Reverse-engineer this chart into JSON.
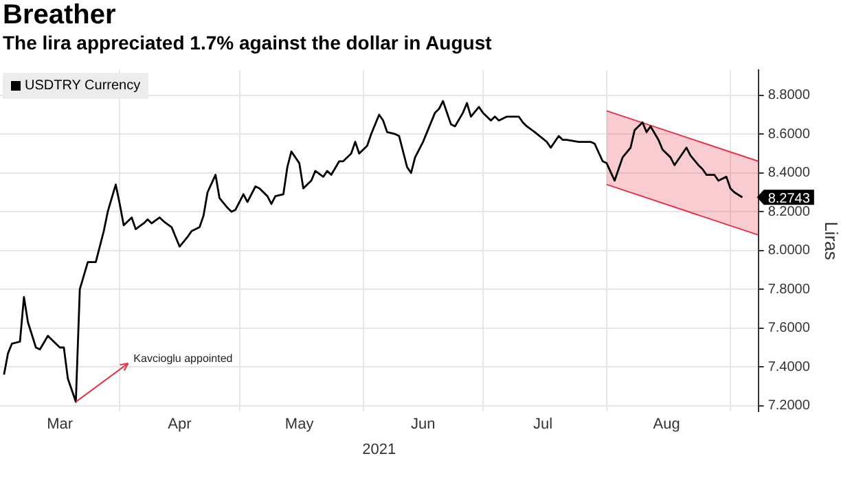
{
  "chart_data": {
    "type": "line",
    "title": "Breather",
    "subtitle": "The lira appreciated 1.7% against the dollar in August",
    "xlabel": "2021",
    "ylabel": "Liras",
    "xlim": [
      "2021-03-02",
      "2021-09-08"
    ],
    "xticks": [
      {
        "value": "2021-03-17",
        "label": "Mar"
      },
      {
        "value": "2021-04-01",
        "label": null
      },
      {
        "value": "2021-04-16",
        "label": "Apr"
      },
      {
        "value": "2021-05-01",
        "label": null
      },
      {
        "value": "2021-05-16",
        "label": "May"
      },
      {
        "value": "2021-06-01",
        "label": null
      },
      {
        "value": "2021-06-16",
        "label": "Jun"
      },
      {
        "value": "2021-07-01",
        "label": null
      },
      {
        "value": "2021-07-16",
        "label": "Jul"
      },
      {
        "value": "2021-08-01",
        "label": null
      },
      {
        "value": "2021-08-16",
        "label": "Aug"
      },
      {
        "value": "2021-09-01",
        "label": null
      }
    ],
    "ylim": [
      7.17,
      8.93
    ],
    "yticks": [
      {
        "value": 7.2,
        "label": "7.2000"
      },
      {
        "value": 7.4,
        "label": "7.4000"
      },
      {
        "value": 7.6,
        "label": "7.6000"
      },
      {
        "value": 7.8,
        "label": "7.8000"
      },
      {
        "value": 8,
        "label": "8.0000"
      },
      {
        "value": 8.2,
        "label": "8.2000"
      },
      {
        "value": 8.4,
        "label": "8.4000"
      },
      {
        "value": 8.6,
        "label": "8.6000"
      },
      {
        "value": 8.8,
        "label": "8.8000"
      }
    ],
    "grid": true,
    "legend": "top left",
    "marker": "none",
    "line_style": "solid",
    "x": [
      "2021-03-03",
      "2021-03-04",
      "2021-03-05",
      "2021-03-07",
      "2021-03-08",
      "2021-03-09",
      "2021-03-11",
      "2021-03-12",
      "2021-03-14",
      "2021-03-15",
      "2021-03-17",
      "2021-03-18",
      "2021-03-19",
      "2021-03-21",
      "2021-03-22",
      "2021-03-24",
      "2021-03-25",
      "2021-03-26",
      "2021-03-28",
      "2021-03-29",
      "2021-03-31",
      "2021-04-01",
      "2021-04-02",
      "2021-04-04",
      "2021-04-05",
      "2021-04-07",
      "2021-04-08",
      "2021-04-09",
      "2021-04-11",
      "2021-04-12",
      "2021-04-14",
      "2021-04-15",
      "2021-04-16",
      "2021-04-18",
      "2021-04-19",
      "2021-04-21",
      "2021-04-22",
      "2021-04-23",
      "2021-04-25",
      "2021-04-26",
      "2021-04-28",
      "2021-04-29",
      "2021-04-30",
      "2021-05-02",
      "2021-05-03",
      "2021-05-05",
      "2021-05-06",
      "2021-05-08",
      "2021-05-09",
      "2021-05-10",
      "2021-05-12",
      "2021-05-13",
      "2021-05-14",
      "2021-05-16",
      "2021-05-17",
      "2021-05-19",
      "2021-05-20",
      "2021-05-22",
      "2021-05-23",
      "2021-05-24",
      "2021-05-26",
      "2021-05-27",
      "2021-05-29",
      "2021-05-30",
      "2021-05-31",
      "2021-06-02",
      "2021-06-03",
      "2021-06-05",
      "2021-06-06",
      "2021-06-07",
      "2021-06-09",
      "2021-06-10",
      "2021-06-12",
      "2021-06-13",
      "2021-06-14",
      "2021-06-16",
      "2021-06-17",
      "2021-06-19",
      "2021-06-20",
      "2021-06-21",
      "2021-06-23",
      "2021-06-24",
      "2021-06-26",
      "2021-06-27",
      "2021-06-28",
      "2021-06-30",
      "2021-07-01",
      "2021-07-03",
      "2021-07-04",
      "2021-07-05",
      "2021-07-07",
      "2021-07-10",
      "2021-07-11",
      "2021-07-12",
      "2021-07-14",
      "2021-07-17",
      "2021-07-18",
      "2021-07-20",
      "2021-07-21",
      "2021-07-22",
      "2021-07-25",
      "2021-07-28",
      "2021-07-29",
      "2021-07-31",
      "2021-08-01",
      "2021-08-03",
      "2021-08-04",
      "2021-08-05",
      "2021-08-07",
      "2021-08-08",
      "2021-08-10",
      "2021-08-11",
      "2021-08-12",
      "2021-08-14",
      "2021-08-15",
      "2021-08-17",
      "2021-08-18",
      "2021-08-19",
      "2021-08-21",
      "2021-08-22",
      "2021-08-24",
      "2021-08-25",
      "2021-08-26",
      "2021-08-28",
      "2021-08-29",
      "2021-08-31",
      "2021-09-01",
      "2021-09-02",
      "2021-09-04"
    ],
    "series": [
      {
        "name": "USDTRY Currency",
        "color": "#000000",
        "values": [
          7.36,
          7.47,
          7.52,
          7.53,
          7.76,
          7.63,
          7.5,
          7.49,
          7.56,
          7.54,
          7.5,
          7.5,
          7.34,
          7.22,
          7.8,
          7.94,
          7.94,
          7.94,
          8.1,
          8.2,
          8.34,
          8.24,
          8.13,
          8.17,
          8.11,
          8.14,
          8.16,
          8.14,
          8.17,
          8.15,
          8.12,
          8.07,
          8.02,
          8.07,
          8.1,
          8.12,
          8.18,
          8.3,
          8.39,
          8.27,
          8.22,
          8.2,
          8.21,
          8.29,
          8.25,
          8.33,
          8.32,
          8.28,
          8.24,
          8.28,
          8.29,
          8.43,
          8.51,
          8.45,
          8.32,
          8.36,
          8.41,
          8.38,
          8.41,
          8.39,
          8.46,
          8.46,
          8.5,
          8.56,
          8.5,
          8.54,
          8.6,
          8.7,
          8.67,
          8.61,
          8.6,
          8.59,
          8.43,
          8.4,
          8.48,
          8.56,
          8.61,
          8.71,
          8.73,
          8.77,
          8.65,
          8.64,
          8.71,
          8.76,
          8.69,
          8.74,
          8.71,
          8.67,
          8.69,
          8.67,
          8.69,
          8.69,
          8.66,
          8.64,
          8.61,
          8.56,
          8.53,
          8.59,
          8.57,
          8.57,
          8.56,
          8.56,
          8.55,
          8.46,
          8.45,
          8.36,
          8.42,
          8.48,
          8.53,
          8.62,
          8.66,
          8.61,
          8.64,
          8.57,
          8.52,
          8.48,
          8.44,
          8.47,
          8.53,
          8.49,
          8.44,
          8.42,
          8.39,
          8.39,
          8.36,
          8.38,
          8.32,
          8.3,
          8.2743
        ],
        "value_labels": [
          null,
          null,
          null,
          null,
          null,
          null,
          null,
          null,
          null,
          null,
          null,
          null,
          null,
          null,
          null,
          null,
          null,
          null,
          null,
          null,
          null,
          null,
          null,
          null,
          null,
          null,
          null,
          null,
          null,
          null,
          null,
          null,
          null,
          null,
          null,
          null,
          null,
          null,
          null,
          null,
          null,
          null,
          null,
          null,
          null,
          null,
          null,
          null,
          null,
          null,
          null,
          null,
          null,
          null,
          null,
          null,
          null,
          null,
          null,
          null,
          null,
          null,
          null,
          null,
          null,
          null,
          null,
          null,
          null,
          null,
          null,
          null,
          null,
          null,
          null,
          null,
          null,
          null,
          null,
          null,
          null,
          null,
          null,
          null,
          null,
          null,
          null,
          null,
          null,
          null,
          null,
          null,
          null,
          null,
          null,
          null,
          null,
          null,
          null,
          null,
          null,
          null,
          null,
          null,
          null,
          null,
          null,
          null,
          null,
          null,
          null,
          null,
          null,
          null,
          null,
          null,
          null,
          null,
          null,
          null,
          null,
          null,
          null,
          null,
          null,
          null,
          null,
          null,
          "8.2743"
        ]
      },
      {
        "type": "line",
        "color": "#e8334a",
        "x": [
          "2021-08-01",
          "2021-09-08"
        ],
        "values": [
          8.72,
          8.46
        ]
      },
      {
        "type": "line",
        "color": "#e8334a",
        "x": [
          "2021-08-01",
          "2021-09-08"
        ],
        "values": [
          8.34,
          8.08
        ],
        "lower": [
          8.34,
          8.08
        ],
        "upper": [
          8.72,
          8.46
        ]
      }
    ],
    "annotations": [
      {
        "text": "Kavcioglu appointed",
        "x": "2021-03-21",
        "y": 7.22
      }
    ]
  }
}
